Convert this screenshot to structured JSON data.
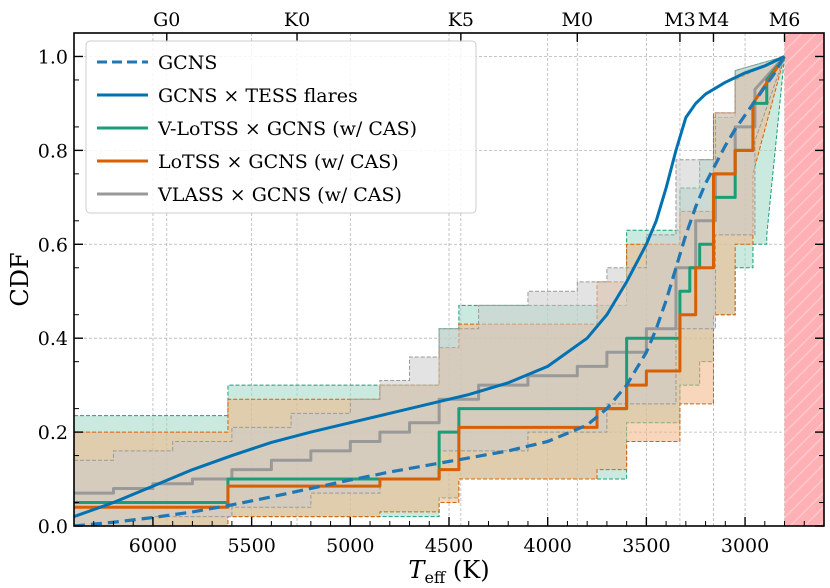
{
  "chart_data": {
    "type": "line",
    "xlabel_main": "T",
    "xlabel_sub": "eff",
    "xlabel_unit": " (K)",
    "ylabel": "CDF",
    "xlim": [
      6400,
      2600
    ],
    "ylim": [
      0.0,
      1.05
    ],
    "x_ticks": [
      6000,
      5500,
      5000,
      4500,
      4000,
      3500,
      3000
    ],
    "x_tick_labels": [
      "6000",
      "5500",
      "5000",
      "4500",
      "4000",
      "3500",
      "3000"
    ],
    "y_ticks": [
      0.0,
      0.2,
      0.4,
      0.6,
      0.8,
      1.0
    ],
    "y_tick_labels": [
      "0.0",
      "0.2",
      "0.4",
      "0.6",
      "0.8",
      "1.0"
    ],
    "top_axis": [
      {
        "label": "G0",
        "x": 5930
      },
      {
        "label": "K0",
        "x": 5270
      },
      {
        "label": "K5",
        "x": 4440
      },
      {
        "label": "M0",
        "x": 3850
      },
      {
        "label": "M3",
        "x": 3330
      },
      {
        "label": "M4",
        "x": 3160
      },
      {
        "label": "M6",
        "x": 2800
      }
    ],
    "shaded_region": {
      "x_from": 2800,
      "x_to": 2600,
      "color": "#ffb0b5"
    },
    "grid": true,
    "legend_position": "top-left",
    "series": [
      {
        "name": "GCNS",
        "style": "dashed",
        "color": "#1f77b4",
        "x": [
          6400,
          6200,
          6000,
          5800,
          5600,
          5400,
          5200,
          5000,
          4800,
          4600,
          4400,
          4200,
          4000,
          3800,
          3700,
          3600,
          3500,
          3450,
          3400,
          3350,
          3300,
          3250,
          3200,
          3150,
          3100,
          3050,
          3000,
          2950,
          2900,
          2850,
          2800
        ],
        "y": [
          0.0,
          0.008,
          0.018,
          0.03,
          0.045,
          0.062,
          0.08,
          0.098,
          0.115,
          0.13,
          0.145,
          0.16,
          0.18,
          0.215,
          0.25,
          0.3,
          0.37,
          0.42,
          0.48,
          0.55,
          0.62,
          0.68,
          0.73,
          0.77,
          0.81,
          0.845,
          0.875,
          0.905,
          0.935,
          0.965,
          1.0
        ]
      },
      {
        "name": "GCNS × TESS flares",
        "style": "solid",
        "color": "#0072b2",
        "x": [
          6400,
          6200,
          6000,
          5800,
          5600,
          5400,
          5200,
          5000,
          4800,
          4600,
          4400,
          4200,
          4000,
          3800,
          3700,
          3600,
          3500,
          3450,
          3400,
          3350,
          3300,
          3250,
          3200,
          3100,
          3000,
          2900,
          2800
        ],
        "y": [
          0.02,
          0.05,
          0.085,
          0.12,
          0.15,
          0.178,
          0.2,
          0.22,
          0.24,
          0.26,
          0.28,
          0.305,
          0.34,
          0.4,
          0.45,
          0.52,
          0.6,
          0.65,
          0.72,
          0.8,
          0.87,
          0.9,
          0.92,
          0.945,
          0.965,
          0.98,
          1.0
        ]
      },
      {
        "name": "V-LoTSS × GCNS (w/ CAS)",
        "style": "step",
        "color": "#1a9e77",
        "x": [
          6400,
          5620,
          5620,
          4550,
          4550,
          4450,
          4450,
          3600,
          3600,
          3330,
          3330,
          3280,
          3280,
          3230,
          3230,
          3160,
          3160,
          3050,
          3050,
          2960,
          2960,
          2890,
          2890,
          2800
        ],
        "y": [
          0.05,
          0.05,
          0.1,
          0.1,
          0.2,
          0.2,
          0.25,
          0.25,
          0.4,
          0.4,
          0.5,
          0.5,
          0.55,
          0.55,
          0.6,
          0.6,
          0.7,
          0.7,
          0.8,
          0.8,
          0.9,
          0.9,
          0.95,
          1.0
        ],
        "band_lower": {
          "x": [
            6400,
            5620,
            5620,
            4550,
            4550,
            4450,
            4450,
            3600,
            3600,
            3330,
            3330,
            3230,
            3230,
            3160,
            3160,
            3050,
            3050,
            2960,
            2960,
            2890,
            2890,
            2800
          ],
          "y": [
            0.0,
            0.0,
            0.02,
            0.02,
            0.06,
            0.06,
            0.1,
            0.1,
            0.22,
            0.22,
            0.3,
            0.3,
            0.35,
            0.35,
            0.45,
            0.45,
            0.55,
            0.55,
            0.6,
            0.6,
            0.62,
            1.0
          ]
        },
        "band_upper": {
          "x": [
            6400,
            5620,
            5620,
            4550,
            4550,
            4450,
            4450,
            3600,
            3600,
            3330,
            3330,
            3230,
            3230,
            3160,
            3160,
            3050,
            3050,
            2800
          ],
          "y": [
            0.235,
            0.235,
            0.3,
            0.3,
            0.42,
            0.42,
            0.47,
            0.47,
            0.63,
            0.63,
            0.72,
            0.72,
            0.78,
            0.78,
            0.87,
            0.87,
            0.97,
            1.0
          ]
        },
        "fill_color": "#9fd9c6"
      },
      {
        "name": "LoTSS × GCNS (w/ CAS)",
        "style": "step",
        "color": "#d95f02",
        "x": [
          6400,
          5620,
          5620,
          4850,
          4850,
          4550,
          4550,
          4450,
          4450,
          3750,
          3750,
          3600,
          3600,
          3500,
          3500,
          3330,
          3330,
          3250,
          3250,
          3160,
          3160,
          3050,
          3050,
          2960,
          2960,
          2800
        ],
        "y": [
          0.04,
          0.04,
          0.085,
          0.085,
          0.1,
          0.1,
          0.12,
          0.12,
          0.21,
          0.21,
          0.25,
          0.25,
          0.3,
          0.3,
          0.33,
          0.33,
          0.45,
          0.45,
          0.55,
          0.55,
          0.75,
          0.75,
          0.8,
          0.8,
          0.9,
          1.0
        ],
        "band_lower": {
          "x": [
            6400,
            5620,
            5620,
            4850,
            4850,
            4550,
            4550,
            4450,
            4450,
            3750,
            3750,
            3600,
            3600,
            3330,
            3330,
            3160,
            3160,
            3050,
            3050,
            2960,
            2960,
            2800
          ],
          "y": [
            0.0,
            0.0,
            0.02,
            0.02,
            0.03,
            0.03,
            0.05,
            0.05,
            0.1,
            0.1,
            0.12,
            0.12,
            0.18,
            0.18,
            0.26,
            0.26,
            0.45,
            0.45,
            0.6,
            0.6,
            0.75,
            1.0
          ]
        },
        "band_upper": {
          "x": [
            6400,
            5620,
            5620,
            4850,
            4850,
            4550,
            4550,
            4450,
            4450,
            3750,
            3750,
            3600,
            3600,
            3330,
            3330,
            3160,
            3160,
            3050,
            3050,
            2800
          ],
          "y": [
            0.2,
            0.2,
            0.27,
            0.27,
            0.3,
            0.3,
            0.38,
            0.38,
            0.43,
            0.43,
            0.52,
            0.52,
            0.6,
            0.6,
            0.67,
            0.67,
            0.88,
            0.88,
            0.95,
            1.0
          ]
        },
        "fill_color": "#f3b584"
      },
      {
        "name": "VLASS × GCNS (w/ CAS)",
        "style": "step",
        "color": "#999999",
        "x": [
          6400,
          6200,
          6200,
          6000,
          6000,
          5800,
          5800,
          5600,
          5600,
          5400,
          5400,
          5200,
          5200,
          5000,
          5000,
          4850,
          4850,
          4700,
          4700,
          4550,
          4550,
          4350,
          4350,
          4100,
          4100,
          3850,
          3850,
          3700,
          3700,
          3500,
          3500,
          3350,
          3350,
          3250,
          3250,
          3150,
          3150,
          3050,
          3050,
          2950,
          2950,
          2800
        ],
        "y": [
          0.07,
          0.07,
          0.08,
          0.08,
          0.09,
          0.09,
          0.1,
          0.1,
          0.12,
          0.12,
          0.14,
          0.14,
          0.16,
          0.16,
          0.18,
          0.18,
          0.2,
          0.2,
          0.22,
          0.22,
          0.27,
          0.27,
          0.3,
          0.3,
          0.32,
          0.32,
          0.34,
          0.34,
          0.37,
          0.37,
          0.42,
          0.42,
          0.55,
          0.55,
          0.65,
          0.65,
          0.75,
          0.75,
          0.85,
          0.85,
          0.93,
          1.0
        ],
        "band_lower": {
          "x": [
            6400,
            6000,
            6000,
            5600,
            5600,
            5200,
            5200,
            4850,
            4850,
            4550,
            4550,
            4100,
            4100,
            3700,
            3700,
            3350,
            3350,
            3150,
            3150,
            2950,
            2950,
            2800
          ],
          "y": [
            0.0,
            0.0,
            0.02,
            0.02,
            0.04,
            0.04,
            0.07,
            0.07,
            0.1,
            0.1,
            0.16,
            0.16,
            0.2,
            0.2,
            0.26,
            0.26,
            0.42,
            0.42,
            0.62,
            0.62,
            0.82,
            1.0
          ]
        },
        "band_upper": {
          "x": [
            6400,
            6200,
            6200,
            5900,
            5900,
            5600,
            5600,
            5300,
            5300,
            5000,
            5000,
            4850,
            4850,
            4700,
            4700,
            4550,
            4550,
            4350,
            4350,
            4100,
            4100,
            3850,
            3850,
            3700,
            3700,
            3500,
            3500,
            3350,
            3350,
            3150,
            3150,
            3050,
            3050,
            2800
          ],
          "y": [
            0.14,
            0.14,
            0.16,
            0.16,
            0.18,
            0.18,
            0.21,
            0.21,
            0.24,
            0.24,
            0.27,
            0.27,
            0.31,
            0.31,
            0.36,
            0.36,
            0.42,
            0.42,
            0.47,
            0.47,
            0.5,
            0.5,
            0.52,
            0.52,
            0.55,
            0.55,
            0.62,
            0.62,
            0.78,
            0.78,
            0.88,
            0.88,
            0.97,
            1.0
          ]
        },
        "fill_color": "#cccccc"
      }
    ]
  }
}
